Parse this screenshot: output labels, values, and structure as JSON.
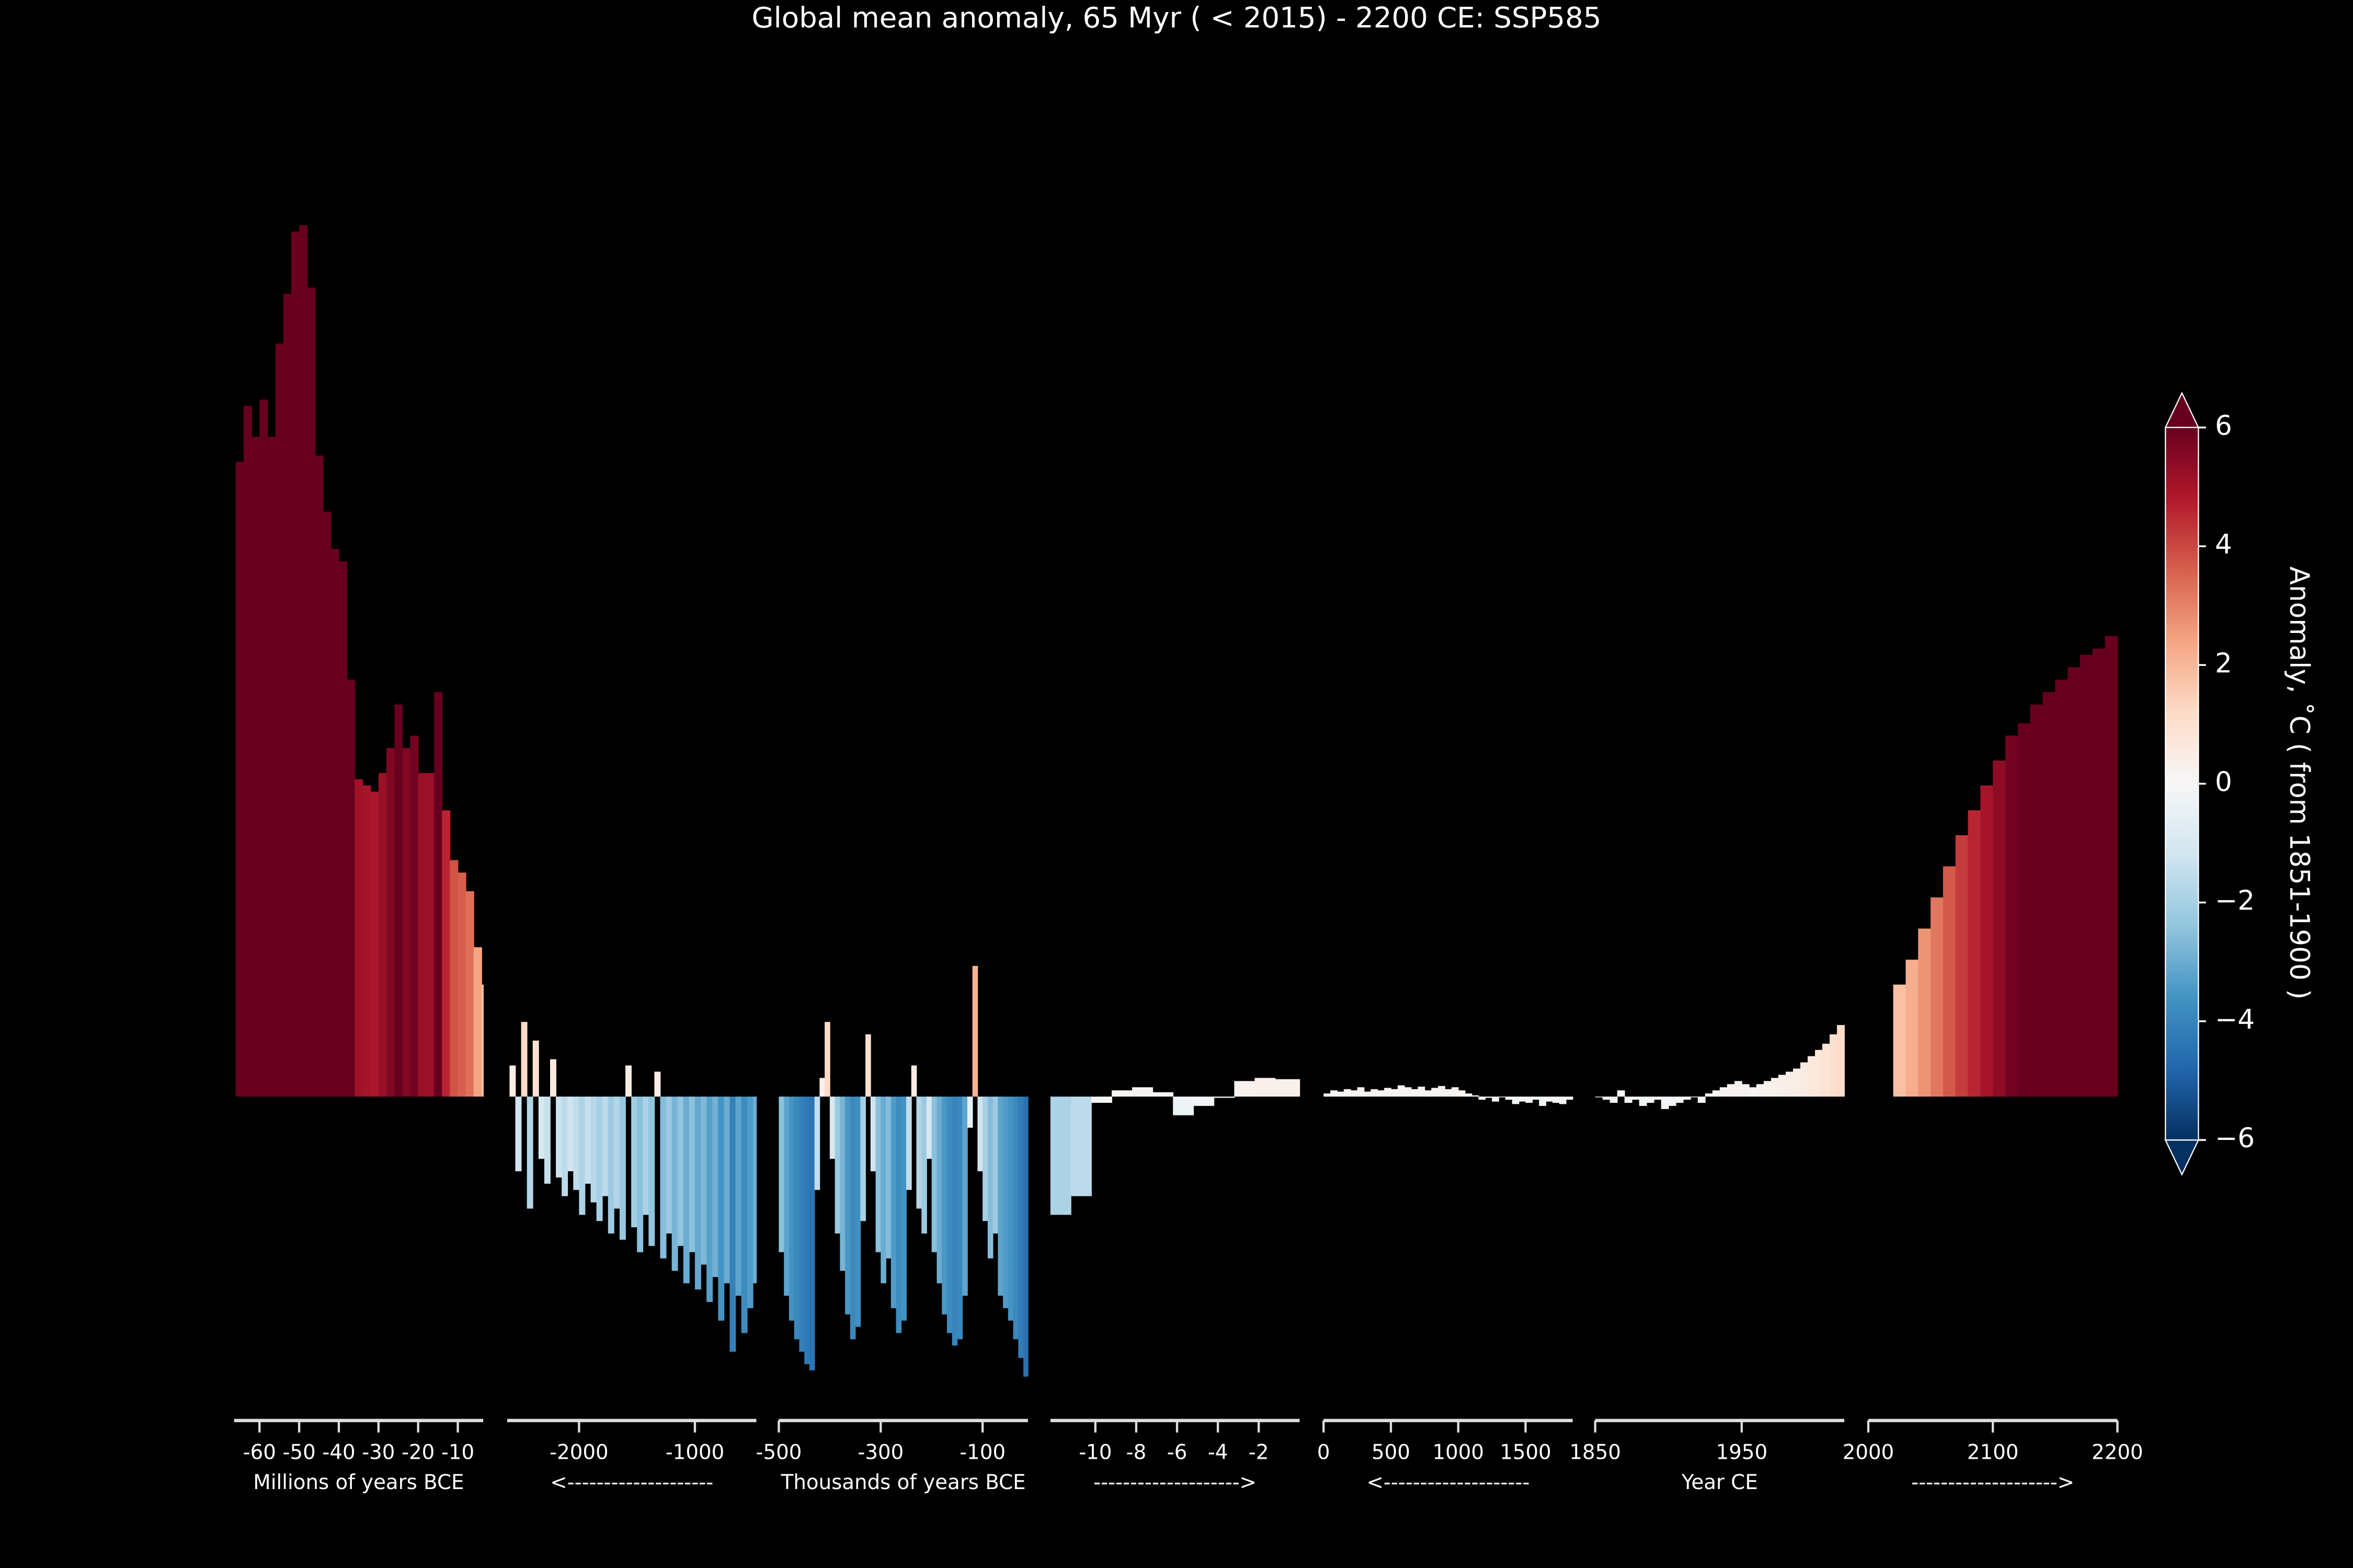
{
  "chart_data": {
    "type": "bar",
    "title": "Global mean anomaly, 65 Myr ( < 2015) - 2200 CE: SSP585",
    "ylim": [
      -5,
      16.5
    ],
    "colorbar": {
      "label": "Anomaly, ˚C ( from 1851-1900 )",
      "lim": [
        -6,
        6
      ],
      "ticks": [
        {
          "value": -6,
          "label": "−6"
        },
        {
          "value": -4,
          "label": "−4"
        },
        {
          "value": -2,
          "label": "−2"
        },
        0,
        2,
        4,
        6
      ],
      "colormap": [
        "#053061",
        "#2166ac",
        "#4393c3",
        "#92c5de",
        "#d1e5f0",
        "#f7f7f7",
        "#fddbc7",
        "#f4a582",
        "#d6604d",
        "#b2182b",
        "#67001f"
      ],
      "extend": "both"
    },
    "panels": [
      {
        "xlim": [
          -66.4,
          -3.6
        ],
        "xticks": [
          -60,
          -50,
          -40,
          -30,
          -20,
          -10
        ],
        "xlabel": "Millions of years BCE",
        "x": [
          -66,
          -64,
          -62,
          -60,
          -58,
          -56,
          -54,
          -52,
          -50,
          -48,
          -46,
          -44,
          -42,
          -40,
          -38,
          -36,
          -34,
          -32,
          -30,
          -28,
          -26,
          -24,
          -22,
          -20,
          -18,
          -16,
          -14,
          -12,
          -10,
          -8,
          -6,
          -4
        ],
        "values": [
          10.2,
          11.1,
          10.6,
          11.2,
          10.6,
          12.1,
          12.9,
          13.9,
          14.0,
          13.0,
          10.3,
          9.4,
          8.8,
          8.6,
          6.7,
          5.1,
          5.0,
          4.9,
          5.2,
          5.6,
          6.3,
          5.6,
          5.8,
          5.2,
          5.2,
          6.5,
          4.6,
          3.8,
          3.6,
          3.3,
          2.4,
          1.8
        ]
      },
      {
        "xlim": [
          -2620,
          -470
        ],
        "xticks": [
          -2000,
          -1000
        ],
        "xlabel": "<--------------------",
        "x": [
          -2600,
          -2550,
          -2500,
          -2450,
          -2400,
          -2350,
          -2300,
          -2250,
          -2200,
          -2150,
          -2100,
          -2050,
          -2000,
          -1950,
          -1900,
          -1850,
          -1800,
          -1750,
          -1700,
          -1650,
          -1600,
          -1550,
          -1500,
          -1450,
          -1400,
          -1350,
          -1300,
          -1250,
          -1200,
          -1150,
          -1100,
          -1050,
          -1000,
          -950,
          -900,
          -850,
          -800,
          -750,
          -700,
          -650,
          -600,
          -550,
          -500
        ],
        "values": [
          0.5,
          -1.2,
          1.2,
          -1.8,
          0.9,
          -1.0,
          -1.4,
          0.6,
          -1.3,
          -1.6,
          -1.2,
          -1.5,
          -1.9,
          -1.4,
          -1.7,
          -2.0,
          -1.6,
          -2.2,
          -1.8,
          -2.3,
          0.5,
          -2.1,
          -2.5,
          -1.9,
          -2.4,
          0.4,
          -2.6,
          -2.2,
          -2.8,
          -2.4,
          -3.0,
          -2.5,
          -3.1,
          -2.7,
          -3.3,
          -2.9,
          -3.6,
          -3.0,
          -4.1,
          -3.2,
          -3.8,
          -3.4,
          -3.0
        ]
      },
      {
        "xlim": [
          -500,
          -11
        ],
        "xticks": [
          -500,
          -300,
          -100
        ],
        "xlabel": "Thousands of years BCE",
        "x": [
          -500,
          -490,
          -480,
          -470,
          -460,
          -450,
          -440,
          -430,
          -420,
          -410,
          -400,
          -390,
          -380,
          -370,
          -360,
          -350,
          -340,
          -330,
          -320,
          -310,
          -300,
          -290,
          -280,
          -270,
          -260,
          -250,
          -240,
          -230,
          -220,
          -210,
          -200,
          -190,
          -180,
          -170,
          -160,
          -150,
          -140,
          -130,
          -120,
          -110,
          -100,
          -90,
          -80,
          -70,
          -60,
          -50,
          -40,
          -30,
          -20
        ],
        "values": [
          -2.5,
          -3.2,
          -3.6,
          -3.9,
          -4.1,
          -4.3,
          -4.4,
          -1.5,
          0.3,
          1.2,
          -1.0,
          -2.2,
          -2.8,
          -3.5,
          -3.9,
          -3.7,
          -2.0,
          1.0,
          -1.2,
          -2.5,
          -3.0,
          -2.6,
          -3.4,
          -3.8,
          -3.6,
          -1.5,
          0.5,
          -1.8,
          -2.2,
          -1.0,
          -2.5,
          -3.0,
          -3.5,
          -3.8,
          -4.0,
          -3.9,
          -3.2,
          -0.5,
          2.1,
          -1.2,
          -2.0,
          -2.6,
          -2.2,
          -3.2,
          -3.4,
          -3.6,
          -3.9,
          -4.2,
          -4.5
        ]
      },
      {
        "xlim": [
          -12.2,
          0
        ],
        "xticks": [
          -10,
          -8,
          -6,
          -4,
          -2
        ],
        "xlabel": "-------------------->",
        "x": [
          -12.2,
          -11.2,
          -10.2,
          -9.2,
          -8.2,
          -7.2,
          -6.2,
          -5.2,
          -4.2,
          -3.2,
          -2.2,
          -1.2
        ],
        "values": [
          -1.9,
          -1.6,
          -0.1,
          0.1,
          0.15,
          0.07,
          -0.3,
          -0.15,
          -0.02,
          0.25,
          0.3,
          0.28
        ]
      },
      {
        "xlim": [
          0,
          1850
        ],
        "xticks": [
          0,
          500,
          1000,
          1500
        ],
        "xlabel": "<--------------------",
        "x": [
          0,
          50,
          100,
          150,
          200,
          250,
          300,
          350,
          400,
          450,
          500,
          550,
          600,
          650,
          700,
          750,
          800,
          850,
          900,
          950,
          1000,
          1050,
          1100,
          1150,
          1200,
          1250,
          1300,
          1350,
          1400,
          1450,
          1500,
          1550,
          1600,
          1650,
          1700,
          1750,
          1800
        ],
        "values": [
          0.05,
          0.1,
          0.08,
          0.12,
          0.1,
          0.15,
          0.08,
          0.12,
          0.1,
          0.14,
          0.12,
          0.18,
          0.15,
          0.12,
          0.16,
          0.1,
          0.14,
          0.17,
          0.12,
          0.15,
          0.1,
          0.05,
          0.02,
          -0.05,
          -0.02,
          -0.08,
          0.0,
          -0.05,
          -0.12,
          -0.08,
          -0.1,
          -0.05,
          -0.15,
          -0.08,
          -0.1,
          -0.12,
          -0.05
        ]
      },
      {
        "xlim": [
          1850,
          2020
        ],
        "xticks": [
          1850,
          1950
        ],
        "xlabel": "Year CE",
        "x": [
          1850,
          1855,
          1860,
          1865,
          1870,
          1875,
          1880,
          1885,
          1890,
          1895,
          1900,
          1905,
          1910,
          1915,
          1920,
          1925,
          1930,
          1935,
          1940,
          1945,
          1950,
          1955,
          1960,
          1965,
          1970,
          1975,
          1980,
          1985,
          1990,
          1995,
          2000,
          2005,
          2010,
          2015
        ],
        "values": [
          0.0,
          -0.05,
          -0.1,
          0.1,
          -0.1,
          -0.05,
          -0.15,
          -0.1,
          -0.05,
          -0.2,
          -0.15,
          -0.1,
          -0.05,
          0.0,
          -0.1,
          0.05,
          0.1,
          0.15,
          0.2,
          0.25,
          0.2,
          0.15,
          0.2,
          0.25,
          0.3,
          0.35,
          0.4,
          0.45,
          0.55,
          0.65,
          0.75,
          0.85,
          1.0,
          1.15
        ]
      },
      {
        "xlim": [
          2000,
          2200
        ],
        "xticks": [
          2000,
          2100,
          2200
        ],
        "xlabel": "-------------------->",
        "x": [
          2020,
          2030,
          2040,
          2050,
          2060,
          2070,
          2080,
          2090,
          2100,
          2110,
          2120,
          2130,
          2140,
          2150,
          2160,
          2170,
          2180,
          2190
        ],
        "values": [
          1.8,
          2.2,
          2.7,
          3.2,
          3.7,
          4.2,
          4.6,
          5.0,
          5.4,
          5.8,
          6.0,
          6.3,
          6.5,
          6.7,
          6.9,
          7.1,
          7.2,
          7.4
        ]
      }
    ]
  }
}
